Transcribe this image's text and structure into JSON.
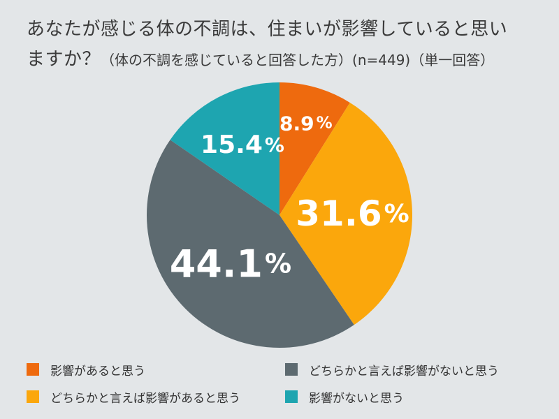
{
  "title": {
    "line1": "あなたが感じる体の不調は、住まいが影響していると思い",
    "line2_main": "ますか？",
    "line2_sub": "（体の不調を感じていると回答した方）(n=449)（単一回答）"
  },
  "colors": {
    "background": "#e3e6e8",
    "yes": "#ee6a0e",
    "somewhat_yes": "#fba70c",
    "somewhat_no": "#5d6a70",
    "no": "#1ea5b0"
  },
  "chart_data": {
    "type": "pie",
    "title": "あなたが感じる体の不調は、住まいが影響していると思いますか？（体の不調を感じていると回答した方）(n=449)（単一回答）",
    "start": "12 o'clock",
    "direction": "clockwise",
    "slices": [
      {
        "name": "影響があると思う",
        "value": 8.9,
        "label_num": "8.9",
        "color": "#ee6a0e"
      },
      {
        "name": "どちらかと言えば影響があると思う",
        "value": 31.6,
        "label_num": "31.6",
        "color": "#fba70c"
      },
      {
        "name": "どちらかと言えば影響がないと思う",
        "value": 44.1,
        "label_num": "44.1",
        "color": "#5d6a70"
      },
      {
        "name": "影響がないと思う",
        "value": 15.4,
        "label_num": "15.4",
        "color": "#1ea5b0"
      }
    ],
    "value_suffix": "%",
    "legend_placement": "bottom"
  },
  "legend": {
    "items": [
      {
        "label": "影響があると思う",
        "color": "#ee6a0e"
      },
      {
        "label": "どちらかと言えば影響があると思う",
        "color": "#fba70c"
      },
      {
        "label": "どちらかと言えば影響がないと思う",
        "color": "#5d6a70"
      },
      {
        "label": "影響がないと思う",
        "color": "#1ea5b0"
      }
    ]
  }
}
